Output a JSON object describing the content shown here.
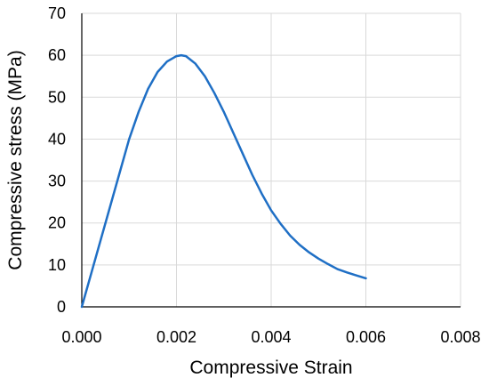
{
  "chart_data": {
    "type": "line",
    "xlabel": "Compressive Strain",
    "ylabel": "Compressive stress (MPa)",
    "xlim": [
      0,
      0.008
    ],
    "ylim": [
      0,
      70
    ],
    "x_ticks": [
      "0.000",
      "0.002",
      "0.004",
      "0.006",
      "0.008"
    ],
    "y_ticks": [
      "0",
      "10",
      "20",
      "30",
      "40",
      "50",
      "60",
      "70"
    ],
    "grid": true,
    "legend": "none",
    "series": [
      {
        "color": "#1f6fc5",
        "points": [
          [
            0.0,
            0
          ],
          [
            0.0002,
            8
          ],
          [
            0.0004,
            16
          ],
          [
            0.0006,
            24
          ],
          [
            0.0008,
            32
          ],
          [
            0.001,
            40
          ],
          [
            0.0012,
            46.5
          ],
          [
            0.0014,
            52
          ],
          [
            0.0016,
            56
          ],
          [
            0.0018,
            58.5
          ],
          [
            0.002,
            59.8
          ],
          [
            0.0021,
            60
          ],
          [
            0.0022,
            59.8
          ],
          [
            0.0024,
            58
          ],
          [
            0.0026,
            55
          ],
          [
            0.0028,
            51
          ],
          [
            0.003,
            46.5
          ],
          [
            0.0032,
            41.5
          ],
          [
            0.0034,
            36.5
          ],
          [
            0.0036,
            31.5
          ],
          [
            0.0038,
            27
          ],
          [
            0.004,
            23
          ],
          [
            0.0042,
            19.8
          ],
          [
            0.0044,
            17
          ],
          [
            0.0046,
            14.8
          ],
          [
            0.0048,
            13
          ],
          [
            0.005,
            11.5
          ],
          [
            0.0052,
            10.2
          ],
          [
            0.0054,
            9
          ],
          [
            0.0056,
            8.2
          ],
          [
            0.0058,
            7.5
          ],
          [
            0.006,
            6.8
          ]
        ]
      }
    ]
  }
}
